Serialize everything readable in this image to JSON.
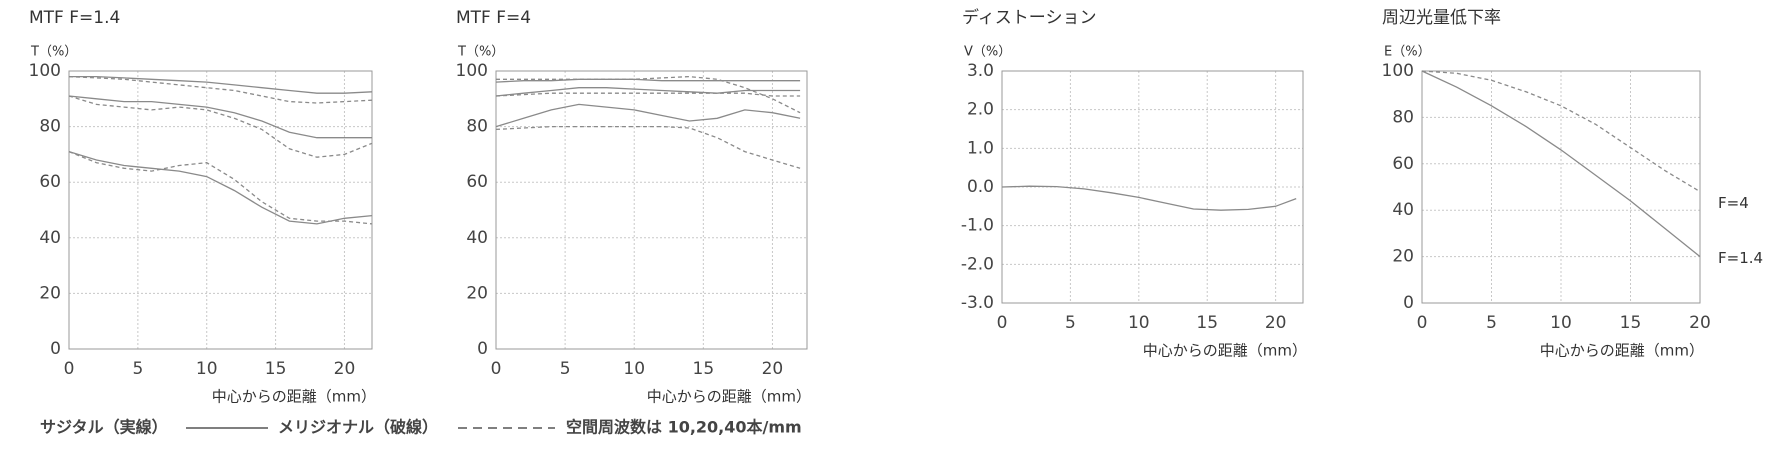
{
  "chart_data": [
    {
      "type": "line",
      "title": "MTF F=1.4",
      "ylabel": "T（%）",
      "xlabel": "中心からの距離（mm）",
      "x": [
        0,
        2,
        4,
        6,
        8,
        10,
        12,
        14,
        16,
        18,
        20,
        22
      ],
      "xlim": [
        0,
        22
      ],
      "ylim": [
        0,
        100
      ],
      "xticks": [
        0,
        5,
        10,
        15,
        20
      ],
      "yticks": [
        0,
        20,
        40,
        60,
        80,
        100
      ],
      "grid": true,
      "series": [
        {
          "color": "#8a8a8a",
          "dashed": false,
          "values": [
            98,
            98,
            97.5,
            97,
            96.5,
            96,
            95,
            94,
            93,
            92,
            92,
            92.5
          ]
        },
        {
          "color": "#8a8a8a",
          "dashed": true,
          "values": [
            98,
            97.5,
            97,
            96,
            95,
            94,
            93,
            91,
            89,
            88.5,
            89,
            89.5
          ]
        },
        {
          "color": "#8a8a8a",
          "dashed": false,
          "values": [
            91,
            90,
            89,
            89,
            88,
            87,
            85,
            82,
            78,
            76,
            76,
            76
          ]
        },
        {
          "color": "#8a8a8a",
          "dashed": true,
          "values": [
            91,
            88,
            87,
            86,
            87,
            86,
            83,
            79,
            72,
            69,
            70,
            74
          ]
        },
        {
          "color": "#8a8a8a",
          "dashed": false,
          "values": [
            71,
            68,
            66,
            65,
            64,
            62,
            57,
            51,
            46,
            45,
            47,
            48
          ]
        },
        {
          "color": "#8a8a8a",
          "dashed": true,
          "values": [
            71,
            67,
            65,
            64,
            66,
            67,
            61,
            53,
            47,
            46,
            46,
            45
          ]
        }
      ]
    },
    {
      "type": "line",
      "title": "MTF F=4",
      "ylabel": "T（%）",
      "xlabel": "中心からの距離（mm）",
      "x": [
        0,
        2,
        4,
        6,
        8,
        10,
        12,
        14,
        16,
        18,
        20,
        22
      ],
      "xlim": [
        0,
        22.5
      ],
      "ylim": [
        0,
        100
      ],
      "xticks": [
        0,
        5,
        10,
        15,
        20
      ],
      "yticks": [
        0,
        20,
        40,
        60,
        80,
        100
      ],
      "grid": true,
      "series": [
        {
          "color": "#8a8a8a",
          "dashed": false,
          "values": [
            96,
            96.5,
            96.5,
            97,
            97,
            97,
            96.5,
            96.5,
            96.5,
            96.5,
            96.5,
            96.5
          ]
        },
        {
          "color": "#8a8a8a",
          "dashed": true,
          "values": [
            97,
            97,
            97,
            97,
            97,
            97,
            97.5,
            98,
            97,
            94,
            90,
            85
          ]
        },
        {
          "color": "#8a8a8a",
          "dashed": false,
          "values": [
            91,
            92,
            93,
            94,
            94,
            93.5,
            93,
            92.5,
            92,
            93,
            93,
            93
          ]
        },
        {
          "color": "#8a8a8a",
          "dashed": true,
          "values": [
            91,
            91.5,
            92,
            92,
            92,
            92,
            92,
            92,
            92,
            92,
            91,
            91
          ]
        },
        {
          "color": "#8a8a8a",
          "dashed": false,
          "values": [
            80,
            83,
            86,
            88,
            87,
            86,
            84,
            82,
            83,
            86,
            85,
            83
          ]
        },
        {
          "color": "#8a8a8a",
          "dashed": true,
          "values": [
            79,
            79.5,
            80,
            80,
            80,
            80,
            80,
            79.5,
            76,
            71,
            68,
            65
          ]
        }
      ]
    },
    {
      "type": "line",
      "title": "ディストーション",
      "ylabel": "V（%）",
      "xlabel": "中心からの距離（mm）",
      "x": [
        0,
        2,
        4,
        6,
        8,
        10,
        12,
        14,
        16,
        18,
        20,
        21.5
      ],
      "xlim": [
        0,
        22
      ],
      "ylim": [
        -3,
        3
      ],
      "xticks": [
        0,
        5,
        10,
        15,
        20
      ],
      "yticks": [
        {
          "value": -3,
          "label": "-3.0"
        },
        {
          "value": -2,
          "label": "-2.0"
        },
        {
          "value": -1,
          "label": "-1.0"
        },
        {
          "value": 0,
          "label": "0.0"
        },
        {
          "value": 1,
          "label": "1.0"
        },
        {
          "value": 2,
          "label": "2.0"
        },
        {
          "value": 3,
          "label": "3.0"
        }
      ],
      "grid": true,
      "series": [
        {
          "color": "#8a8a8a",
          "dashed": false,
          "values": [
            0,
            0.02,
            0.01,
            -0.05,
            -0.15,
            -0.27,
            -0.42,
            -0.57,
            -0.6,
            -0.58,
            -0.5,
            -0.3
          ]
        }
      ]
    },
    {
      "type": "line",
      "title": "周辺光量低下率",
      "ylabel": "E（%）",
      "xlabel": "中心からの距離（mm）",
      "x": [
        0,
        2.5,
        5,
        7.5,
        10,
        12.5,
        15,
        17.5,
        20
      ],
      "xlim": [
        0,
        20
      ],
      "ylim": [
        0,
        100
      ],
      "xticks": [
        0,
        5,
        10,
        15,
        20
      ],
      "yticks": [
        0,
        20,
        40,
        60,
        80,
        100
      ],
      "grid": true,
      "series": [
        {
          "name": "F=4",
          "color": "#8a8a8a",
          "dashed": true,
          "values": [
            100,
            99,
            96,
            91,
            85,
            77,
            67,
            57,
            48
          ]
        },
        {
          "name": "F=1.4",
          "color": "#8a8a8a",
          "dashed": false,
          "values": [
            100,
            93,
            85,
            76,
            66,
            55,
            44,
            32,
            20
          ]
        }
      ]
    }
  ],
  "footer": {
    "sagittal": "サジタル（実線）",
    "meridional": "メリジオナル（破線）",
    "note": "空間周波数は 10,20,40本/mm"
  }
}
